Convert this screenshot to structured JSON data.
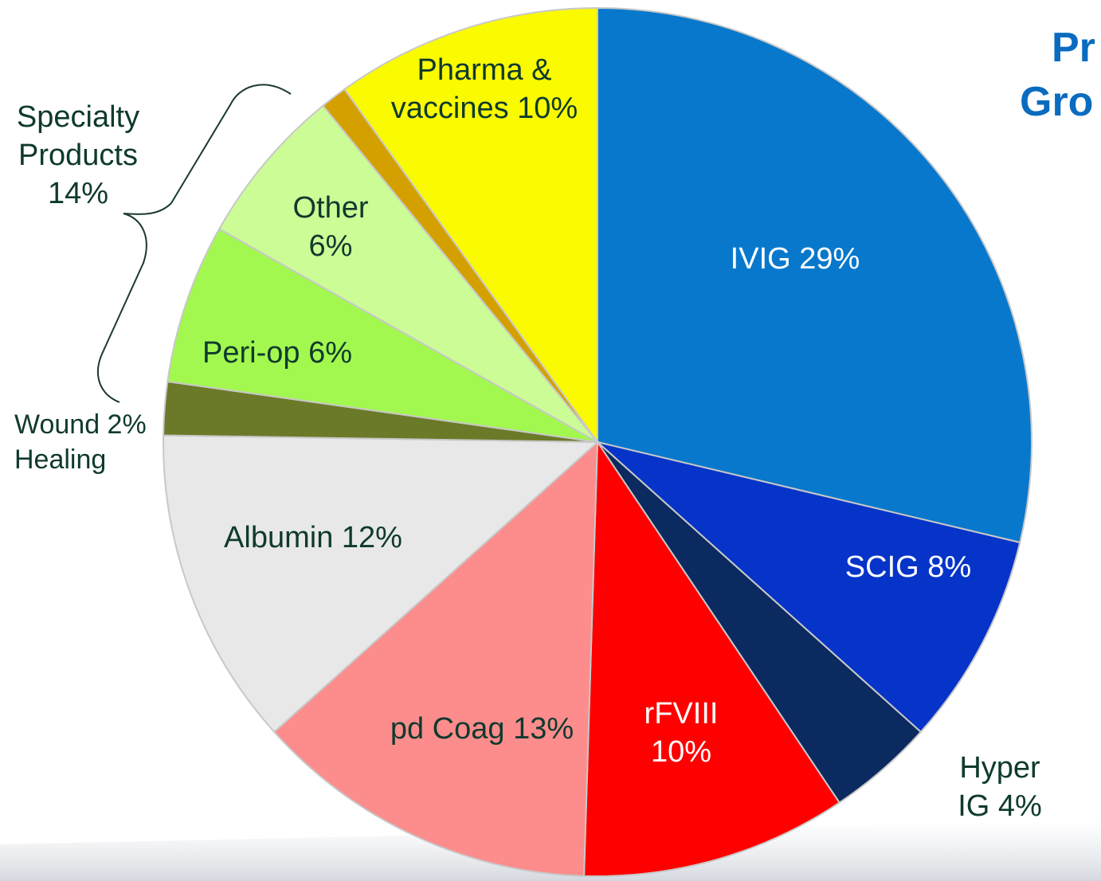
{
  "chart_data": {
    "type": "pie",
    "title_lines": [
      "Pr",
      "Gro"
    ],
    "values": [
      29,
      8,
      4,
      10,
      13,
      12,
      2,
      6,
      6,
      1,
      10
    ],
    "value_labels": [
      "IVIG 29%",
      "SCIG 8%",
      "Hyper IG 4%",
      "rFVIII\n10%",
      "pd Coag 13%",
      "Albumin 12%",
      "Wound 2%\nHealing",
      "Peri-op 6%",
      "Other\n6%",
      null,
      "Pharma &\nvaccines 10%"
    ],
    "colors": [
      "#0878cc",
      "#0634c8",
      "#0a2a60",
      "#fe0000",
      "#fd8c8c",
      "#e8e8e8",
      "#6b7a28",
      "#a2f84e",
      "#ccfc96",
      "#d4a000",
      "#fafa00"
    ],
    "annotations": [
      "Specialty\nProducts\n14%"
    ]
  }
}
